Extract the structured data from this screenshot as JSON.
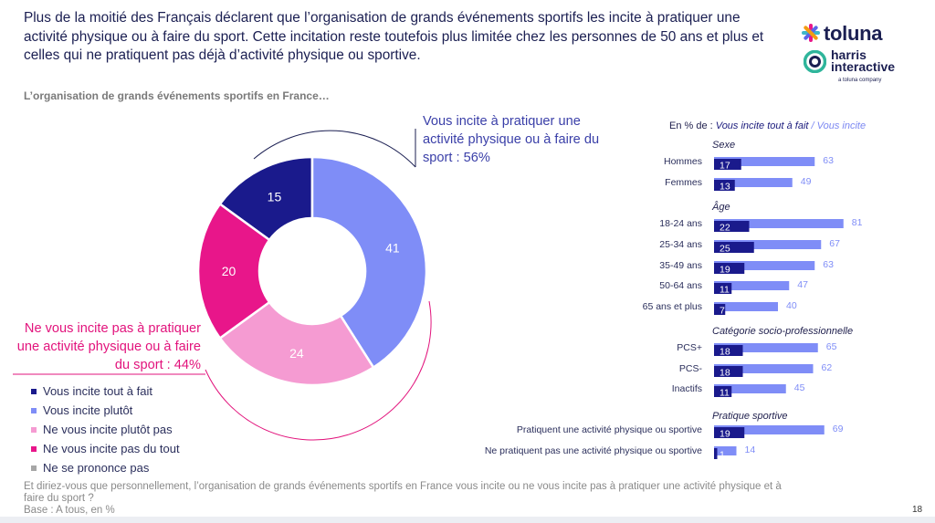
{
  "headline": "Plus de la moitié des Français déclarent que l’organisation de grands événements sportifs les incite à pratiquer une activité physique ou à faire du sport. Cette incitation reste toutefois plus limitée chez les personnes de 50 ans et plus et celles qui ne pratiquent pas déjà d’activité physique ou sportive.",
  "subtitle": "L’organisation de grands événements sportifs en France…",
  "logo": {
    "brand": "toluna",
    "line1": "harris",
    "line2": "interactive",
    "tagline": "a toluna company"
  },
  "colors": {
    "dark_blue": "#1a1a8c",
    "light_blue": "#7f8df7",
    "light_pink": "#f59bd2",
    "magenta": "#e8168a",
    "grey": "#a6a6a6",
    "line_blue": "#1b1f52",
    "line_pink": "#e2137c"
  },
  "callouts": {
    "incite": "Vous incite à pratiquer une activité physique ou à faire du sport : 56%",
    "ne_incite_pas": "Ne vous incite pas à pratiquer une activité physique ou à faire du sport : 44%"
  },
  "legend": [
    {
      "label": "Vous incite tout à fait",
      "color": "#1a1a8c"
    },
    {
      "label": "Vous incite plutôt",
      "color": "#7f8df7"
    },
    {
      "label": "Ne vous incite plutôt pas",
      "color": "#f59bd2"
    },
    {
      "label": "Ne vous incite pas du tout",
      "color": "#e8168a"
    },
    {
      "label": "Ne se prononce pas",
      "color": "#a6a6a6"
    }
  ],
  "bars_header": {
    "prefix": "En % de : ",
    "dark": "Vous incite tout à fait",
    "sep": " / ",
    "light": "Vous incite"
  },
  "chart_data": [
    {
      "type": "pie",
      "categories": [
        "Vous incite tout à fait",
        "Vous incite plutôt",
        "Ne vous incite plutôt pas",
        "Ne vous incite pas du tout",
        "Ne se prononce pas"
      ],
      "values": [
        15,
        41,
        24,
        20,
        0
      ],
      "colors": [
        "#1a1a8c",
        "#7f8df7",
        "#f59bd2",
        "#e8168a",
        "#a6a6a6"
      ]
    },
    {
      "type": "bar",
      "series": [
        {
          "name": "Vous incite tout à fait",
          "color": "#1a1a8c"
        },
        {
          "name": "Vous incite",
          "color": "#7f8df7"
        }
      ],
      "groups": [
        {
          "title": "Sexe",
          "rows": [
            {
              "label": "Hommes",
              "tout_a_fait": 17,
              "incite": 63
            },
            {
              "label": "Femmes",
              "tout_a_fait": 13,
              "incite": 49
            }
          ]
        },
        {
          "title": "Âge",
          "rows": [
            {
              "label": "18-24 ans",
              "tout_a_fait": 22,
              "incite": 81
            },
            {
              "label": "25-34 ans",
              "tout_a_fait": 25,
              "incite": 67
            },
            {
              "label": "35-49 ans",
              "tout_a_fait": 19,
              "incite": 63
            },
            {
              "label": "50-64 ans",
              "tout_a_fait": 11,
              "incite": 47
            },
            {
              "label": "65 ans et plus",
              "tout_a_fait": 7,
              "incite": 40
            }
          ]
        },
        {
          "title": "Catégorie socio-professionnelle",
          "rows": [
            {
              "label": "PCS+",
              "tout_a_fait": 18,
              "incite": 65
            },
            {
              "label": "PCS-",
              "tout_a_fait": 18,
              "incite": 62
            },
            {
              "label": "Inactifs",
              "tout_a_fait": 11,
              "incite": 45
            }
          ]
        },
        {
          "title": "Pratique sportive",
          "rows": [
            {
              "label": "Pratiquent une activité physique ou sportive",
              "tout_a_fait": 19,
              "incite": 69
            },
            {
              "label": "Ne pratiquent pas une activité physique ou sportive",
              "tout_a_fait": 1,
              "incite": 14
            }
          ]
        }
      ]
    }
  ],
  "footer": {
    "question": "Et diriez-vous que personnellement, l’organisation de grands événements sportifs en France vous incite ou ne vous incite pas à pratiquer une activité physique et à faire du sport ?",
    "base": "Base : A tous, en %"
  },
  "page_number": "18"
}
